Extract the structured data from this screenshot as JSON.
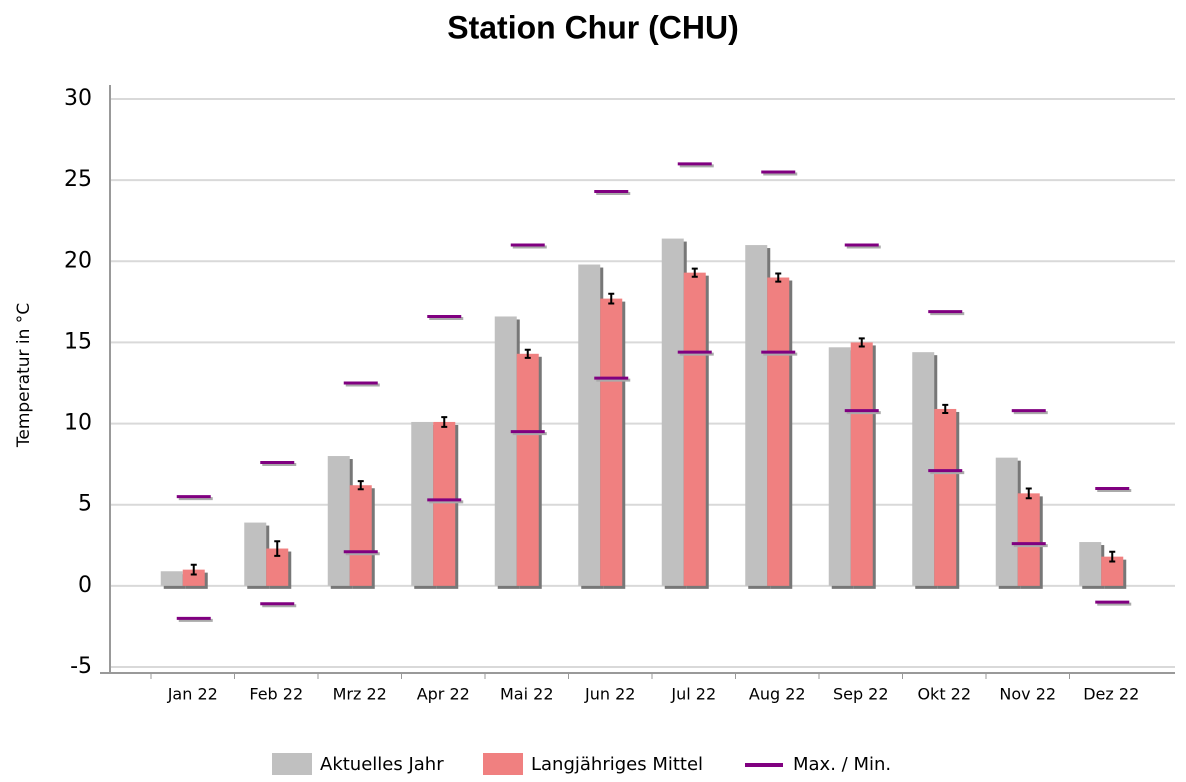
{
  "chart_data": {
    "type": "bar",
    "title": "Station Chur (CHU)",
    "y_label": "Temperatur in °C",
    "categories": [
      "Jan 22",
      "Feb 22",
      "Mrz 22",
      "Apr 22",
      "Mai 22",
      "Jun 22",
      "Jul 22",
      "Aug 22",
      "Sep 22",
      "Okt 22",
      "Nov 22",
      "Dez 22"
    ],
    "series": [
      {
        "name": "Aktuelles Jahr",
        "color": "#c0c0c0",
        "values": [
          0.9,
          3.9,
          8.0,
          10.1,
          16.6,
          19.8,
          21.4,
          21.0,
          14.7,
          14.4,
          7.9,
          2.7
        ]
      },
      {
        "name": "Langjähriges Mittel",
        "color": "#f08080",
        "values": [
          1.0,
          2.3,
          6.2,
          10.1,
          14.3,
          17.7,
          19.3,
          19.0,
          15.0,
          10.9,
          5.7,
          1.8
        ],
        "errors": [
          0.3,
          0.45,
          0.25,
          0.3,
          0.25,
          0.3,
          0.25,
          0.25,
          0.25,
          0.25,
          0.3,
          0.3
        ]
      },
      {
        "name": "Max. / Min.",
        "color": "#800080",
        "max": [
          5.5,
          7.6,
          12.5,
          16.6,
          21.0,
          24.3,
          26.0,
          25.5,
          21.0,
          16.9,
          10.8,
          6.0
        ],
        "min": [
          -2.0,
          -1.1,
          2.1,
          5.3,
          9.5,
          12.8,
          14.4,
          14.4,
          10.8,
          7.1,
          2.6,
          -1.0
        ]
      }
    ],
    "ylim": [
      -5,
      30
    ],
    "yticks": [
      -5,
      0,
      5,
      10,
      15,
      20,
      25,
      30
    ],
    "grid": true
  }
}
